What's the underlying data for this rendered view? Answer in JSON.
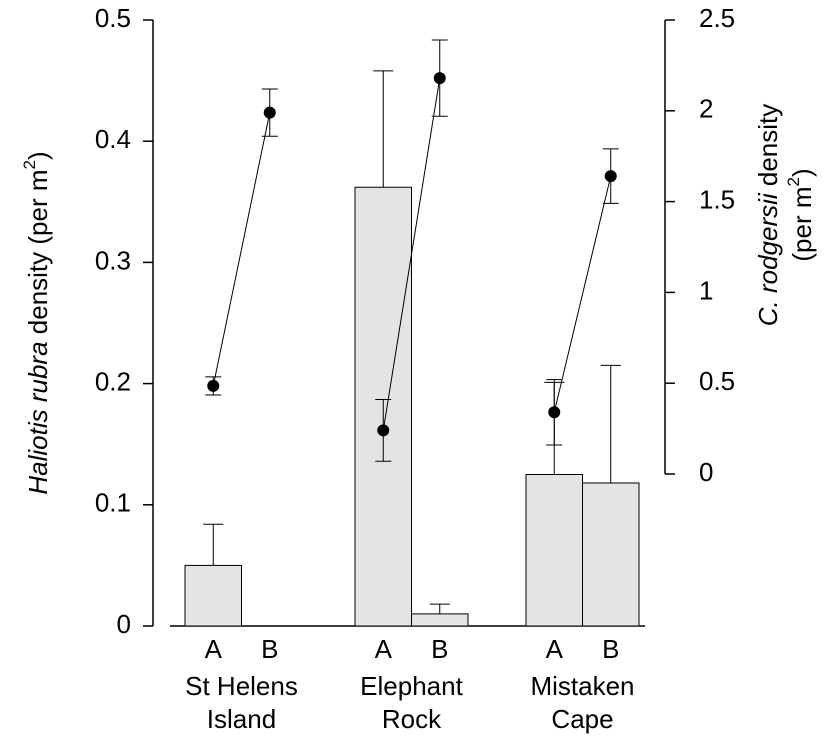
{
  "chart_data": {
    "type": "bar_line",
    "ylabel_parts": [
      "Haliotis rubra",
      " density (per m",
      "2",
      ")"
    ],
    "y2label_lines": [
      [
        "C. rodgersii",
        " density"
      ],
      [
        "(per m",
        "2",
        ")"
      ]
    ],
    "ylim": [
      0,
      0.5
    ],
    "yticks": [
      0,
      0.1,
      0.2,
      0.3,
      0.4,
      0.5
    ],
    "y2lim": [
      0,
      2.5
    ],
    "y2ticks": [
      0,
      0.5,
      1,
      1.5,
      2,
      2.5
    ],
    "bar_color": "#e4e4e4",
    "point_color": "#000000",
    "groups": [
      {
        "name": [
          "St Helens",
          "Island"
        ],
        "categories": [
          "A",
          "B"
        ],
        "bar_values": [
          0.05,
          0
        ],
        "bar_errors": [
          0.034,
          0
        ],
        "point_values": [
          0.485,
          1.99
        ],
        "point_errors": [
          0.05,
          0.13
        ]
      },
      {
        "name": [
          "Elephant",
          "Rock"
        ],
        "categories": [
          "A",
          "B"
        ],
        "bar_values": [
          0.362,
          0.01
        ],
        "bar_errors": [
          0.096,
          0.008
        ],
        "point_values": [
          0.24,
          2.18
        ],
        "point_errors": [
          0.17,
          0.21
        ]
      },
      {
        "name": [
          "Mistaken",
          "Cape"
        ],
        "categories": [
          "A",
          "B"
        ],
        "bar_values": [
          0.125,
          0.118
        ],
        "bar_errors": [
          0.076,
          0.097
        ],
        "point_values": [
          0.34,
          1.64
        ],
        "point_errors": [
          0.18,
          0.15
        ]
      }
    ]
  }
}
